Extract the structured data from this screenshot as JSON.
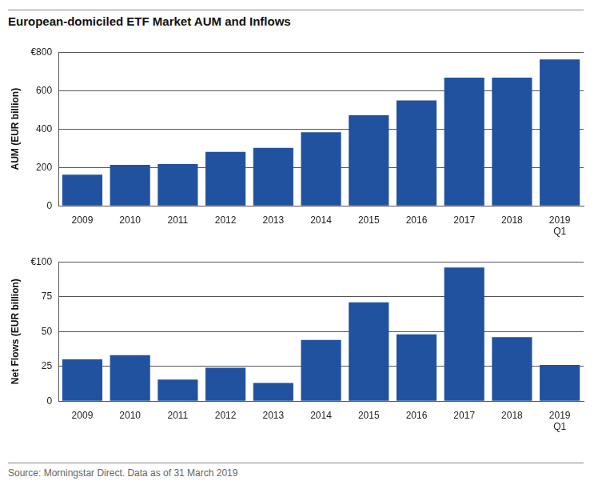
{
  "title": "European-domiciled ETF Market AUM and Inflows",
  "source": "Source: Morningstar Direct. Data as of 31 March 2019",
  "chart_data": [
    {
      "type": "bar",
      "y_label": "AUM (EUR billion)",
      "categories": [
        "2009",
        "2010",
        "2011",
        "2012",
        "2013",
        "2014",
        "2015",
        "2016",
        "2017",
        "2018",
        "2019 Q1"
      ],
      "values": [
        162,
        213,
        217,
        281,
        302,
        383,
        472,
        549,
        668,
        668,
        762
      ],
      "color": "#2152a0",
      "ylim": [
        0,
        800
      ],
      "yticks": [
        0,
        200,
        400,
        600,
        {
          "value": 800,
          "label": "€800"
        }
      ],
      "grid": true
    },
    {
      "type": "bar",
      "y_label": "Net Flows (EUR billion)",
      "categories": [
        "2009",
        "2010",
        "2011",
        "2012",
        "2013",
        "2014",
        "2015",
        "2016",
        "2017",
        "2018",
        "2019 Q1"
      ],
      "values": [
        30,
        33,
        15.5,
        24,
        13,
        44,
        71,
        48,
        96,
        46,
        26
      ],
      "color": "#2152a0",
      "ylim": [
        0,
        100
      ],
      "yticks": [
        0,
        25,
        50,
        75,
        {
          "value": 100,
          "label": "€100"
        }
      ],
      "grid": true
    }
  ]
}
